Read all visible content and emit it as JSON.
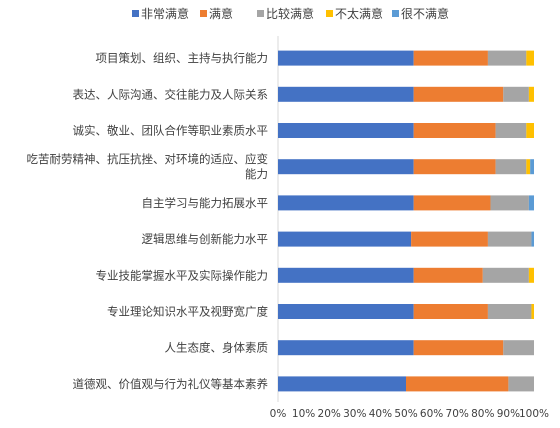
{
  "chart_data": {
    "type": "bar",
    "orientation": "horizontal",
    "stacked": "percent",
    "title": "",
    "xlabel": "",
    "ylabel": "",
    "xlim": [
      0,
      100
    ],
    "x_ticks": [
      "0%",
      "10%",
      "20%",
      "30%",
      "40%",
      "50%",
      "60%",
      "70%",
      "80%",
      "90%",
      "100%"
    ],
    "legend_position": "top",
    "grid": false,
    "categories": [
      [
        "项目策划、组织、主持与执行能力"
      ],
      [
        "表达、人际沟通、交往能力及人际关系"
      ],
      [
        "诚实、敬业、团队合作等职业素质水平"
      ],
      [
        "吃苦耐劳精神、抗压抗挫、对环境的适应、应变",
        "能力"
      ],
      [
        "自主学习与能力拓展水平"
      ],
      [
        "逻辑思维与创新能力水平"
      ],
      [
        "专业技能掌握水平及实际操作能力"
      ],
      [
        "专业理论知识水平及视野宽广度"
      ],
      [
        "人生态度、身体素质"
      ],
      [
        "道德观、价值观与行为礼仪等基本素养"
      ]
    ],
    "series": [
      {
        "name": "非常满意",
        "color": "#4472C4",
        "values": [
          53,
          53,
          53,
          53,
          53,
          52,
          53,
          53,
          53,
          50
        ]
      },
      {
        "name": "满意",
        "color": "#ED7D31",
        "values": [
          29,
          35,
          32,
          32,
          30,
          30,
          27,
          29,
          35,
          40
        ]
      },
      {
        "name": "比较满意",
        "color": "#A5A5A5",
        "values": [
          15,
          10,
          12,
          12,
          15,
          17,
          18,
          17,
          12,
          10
        ]
      },
      {
        "name": "不太满意",
        "color": "#FFC000",
        "values": [
          3,
          2,
          3,
          1.5,
          0,
          0,
          2,
          1,
          0,
          0
        ]
      },
      {
        "name": "很不满意",
        "color": "#5B9BD5",
        "values": [
          0,
          0,
          0,
          1.5,
          2,
          1,
          0,
          0,
          0,
          0
        ]
      }
    ]
  }
}
